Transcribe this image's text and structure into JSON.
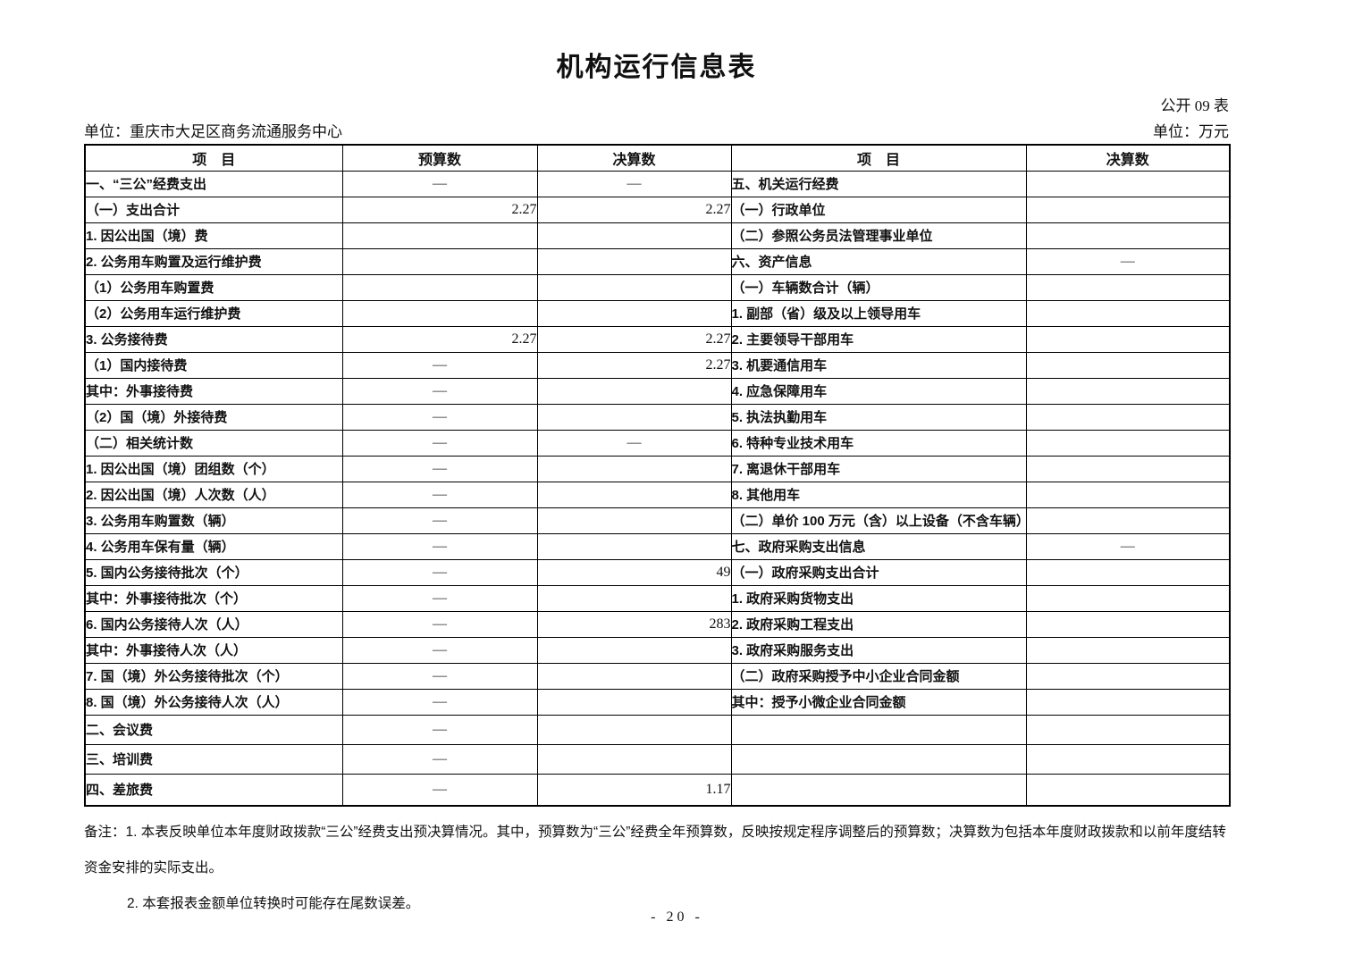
{
  "page": {
    "title": "机构运行信息表",
    "table_code": "公开 09 表",
    "unit_left": "单位：重庆市大足区商务流通服务中心",
    "unit_right": "单位：万元",
    "page_number": "- 20 -"
  },
  "table": {
    "headers": [
      "项　目",
      "预算数",
      "决算数",
      "项　目",
      "决算数"
    ],
    "rows": [
      {
        "l": "一、“三公”经费支出",
        "li": 0,
        "b": "—",
        "f": "—",
        "r": "五、机关运行经费",
        "ri": 0,
        "rf": ""
      },
      {
        "l": "（一）支出合计",
        "li": 1,
        "b": "2.27",
        "f": "2.27",
        "r": "（一）行政单位",
        "ri": 1,
        "rf": ""
      },
      {
        "l": "1. 因公出国（境）费",
        "li": 2,
        "b": "",
        "f": "",
        "r": "（二）参照公务员法管理事业单位",
        "ri": 1,
        "rf": ""
      },
      {
        "l": "2. 公务用车购置及运行维护费",
        "li": 2,
        "b": "",
        "f": "",
        "r": "六、资产信息",
        "ri": 0,
        "rf": "—"
      },
      {
        "l": "（1）公务用车购置费",
        "li": 3,
        "b": "",
        "f": "",
        "r": "（一）车辆数合计（辆）",
        "ri": 1,
        "rf": ""
      },
      {
        "l": "（2）公务用车运行维护费",
        "li": 3,
        "b": "",
        "f": "",
        "r": "1. 副部（省）级及以上领导用车",
        "ri": 2,
        "rf": ""
      },
      {
        "l": "3. 公务接待费",
        "li": 2,
        "b": "2.27",
        "f": "2.27",
        "r": "2. 主要领导干部用车",
        "ri": 2,
        "rf": ""
      },
      {
        "l": "（1）国内接待费",
        "li": 3,
        "b": "—",
        "f": "2.27",
        "r": "3. 机要通信用车",
        "ri": 2,
        "rf": ""
      },
      {
        "l": "其中：外事接待费",
        "li": 5,
        "b": "—",
        "f": "",
        "r": "4. 应急保障用车",
        "ri": 2,
        "rf": ""
      },
      {
        "l": "（2）国（境）外接待费",
        "li": 3,
        "b": "—",
        "f": "",
        "r": "5. 执法执勤用车",
        "ri": 2,
        "rf": ""
      },
      {
        "l": "（二）相关统计数",
        "li": 1,
        "b": "—",
        "f": "—",
        "r": "6. 特种专业技术用车",
        "ri": 2,
        "rf": ""
      },
      {
        "l": "1. 因公出国（境）团组数（个）",
        "li": 2,
        "b": "—",
        "f": "",
        "r": "7. 离退休干部用车",
        "ri": 2,
        "rf": ""
      },
      {
        "l": "2. 因公出国（境）人次数（人）",
        "li": 2,
        "b": "—",
        "f": "",
        "r": "8. 其他用车",
        "ri": 2,
        "rf": ""
      },
      {
        "l": "3. 公务用车购置数（辆）",
        "li": 2,
        "b": "—",
        "f": "",
        "r": "（二）单价 100 万元（含）以上设备（不含车辆）",
        "ri": 1,
        "rf": ""
      },
      {
        "l": "4. 公务用车保有量（辆）",
        "li": 2,
        "b": "—",
        "f": "",
        "r": "七、政府采购支出信息",
        "ri": 0,
        "rf": "—"
      },
      {
        "l": "5. 国内公务接待批次（个）",
        "li": 2,
        "b": "—",
        "f": "49",
        "r": "（一）政府采购支出合计",
        "ri": 1,
        "rf": ""
      },
      {
        "l": "其中：外事接待批次（个）",
        "li": 4,
        "b": "—",
        "f": "",
        "r": "1. 政府采购货物支出",
        "ri": 2,
        "rf": ""
      },
      {
        "l": "6. 国内公务接待人次（人）",
        "li": 2,
        "b": "—",
        "f": "283",
        "r": "2. 政府采购工程支出",
        "ri": 2,
        "rf": ""
      },
      {
        "l": "其中：外事接待人次（人）",
        "li": 4,
        "b": "—",
        "f": "",
        "r": "3. 政府采购服务支出",
        "ri": 2,
        "rf": ""
      },
      {
        "l": "7. 国（境）外公务接待批次（个）",
        "li": 2,
        "b": "—",
        "f": "",
        "r": "（二）政府采购授予中小企业合同金额",
        "ri": 1,
        "rf": ""
      },
      {
        "l": "8. 国（境）外公务接待人次（人）",
        "li": 2,
        "b": "—",
        "f": "",
        "r": "其中：授予小微企业合同金额",
        "ri": 4,
        "rf": ""
      },
      {
        "l": "二、会议费",
        "li": 0,
        "b": "—",
        "f": "",
        "r": "",
        "ri": 0,
        "rf": ""
      },
      {
        "l": "三、培训费",
        "li": 0,
        "b": "—",
        "f": "",
        "r": "",
        "ri": 0,
        "rf": ""
      },
      {
        "l": "四、差旅费",
        "li": 0,
        "b": "—",
        "f": "1.17",
        "r": "",
        "ri": 0,
        "rf": ""
      }
    ]
  },
  "notes": {
    "line1": "备注：1. 本表反映单位本年度财政拨款“三公”经费支出预决算情况。其中，预算数为“三公”经费全年预算数，反映按规定程序调整后的预算数；决算数为包括本年度财政拨款和以前年度结转",
    "line2": "资金安排的实际支出。",
    "line3": "2. 本套报表金额单位转换时可能存在尾数误差。"
  }
}
